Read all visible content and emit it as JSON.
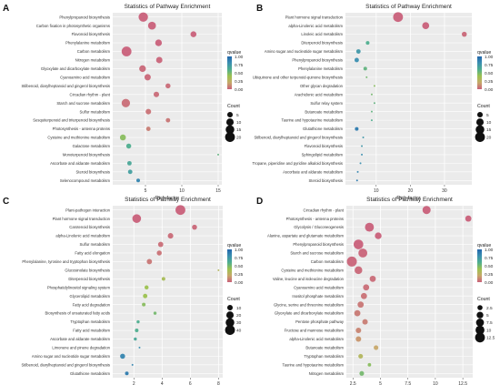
{
  "figure": {
    "scale_colors": [
      "#2166ac",
      "#3b8fb0",
      "#4fae8f",
      "#9cc24f",
      "#c7a86a",
      "#c9607a"
    ]
  },
  "chart_data": [
    {
      "type": "scatter",
      "panel_label": "A",
      "title": "Statistics of Pathway Enrichment",
      "xlabel": "Rich  factor",
      "ylabel": "",
      "xlim": [
        0.5,
        15.5
      ],
      "xticks": [
        5,
        10,
        15
      ],
      "legend": {
        "color_title": "qvalue",
        "color_ticks": [
          "1.00",
          "0.75",
          "0.50",
          "0.25",
          "0.00"
        ],
        "size_title": "Count",
        "size_ticks": [
          5,
          10,
          15,
          20
        ],
        "size_range": [
          5,
          20
        ]
      },
      "pathways": [
        {
          "name": "Phenylpropanoid biosynthesis",
          "rich_factor": 4.7,
          "count": 18,
          "qvalue": 0.0
        },
        {
          "name": "Carbon fixation in photosynthetic organisms",
          "rich_factor": 5.9,
          "count": 12,
          "qvalue": 0.0
        },
        {
          "name": "Flavonoid biosynthesis",
          "rich_factor": 11.6,
          "count": 6,
          "qvalue": 0.0
        },
        {
          "name": "Phenylalanine metabolism",
          "rich_factor": 6.8,
          "count": 8,
          "qvalue": 0.0
        },
        {
          "name": "Carbon metabolism",
          "rich_factor": 2.4,
          "count": 20,
          "qvalue": 0.0
        },
        {
          "name": "Nitrogen metabolism",
          "rich_factor": 6.9,
          "count": 7,
          "qvalue": 0.01
        },
        {
          "name": "Glyoxylate and dicarboxylate metabolism",
          "rich_factor": 4.6,
          "count": 8,
          "qvalue": 0.02
        },
        {
          "name": "Cyanoamino acid metabolism",
          "rich_factor": 5.3,
          "count": 7,
          "qvalue": 0.02
        },
        {
          "name": "Stilbenoid, diarylheptanoid and gingerol biosynthesis",
          "rich_factor": 8.1,
          "count": 4,
          "qvalue": 0.03
        },
        {
          "name": "Circadian rhythm - plant",
          "rich_factor": 6.5,
          "count": 5,
          "qvalue": 0.03
        },
        {
          "name": "Starch and sucrose metabolism",
          "rich_factor": 2.3,
          "count": 14,
          "qvalue": 0.04
        },
        {
          "name": "Sulfur metabolism",
          "rich_factor": 5.4,
          "count": 5,
          "qvalue": 0.05
        },
        {
          "name": "Sesquiterpenoid and triterpenoid biosynthesis",
          "rich_factor": 8.1,
          "count": 3,
          "qvalue": 0.06
        },
        {
          "name": "Photosynthesis - antenna proteins",
          "rich_factor": 5.4,
          "count": 3,
          "qvalue": 0.08
        },
        {
          "name": "Cysteine and methionine metabolism",
          "rich_factor": 1.9,
          "count": 6,
          "qvalue": 0.45
        },
        {
          "name": "Galactose metabolism",
          "rich_factor": 2.7,
          "count": 4,
          "qvalue": 0.6
        },
        {
          "name": "Monoterpenoid biosynthesis",
          "rich_factor": 15.0,
          "count": 1,
          "qvalue": 0.55
        },
        {
          "name": "Ascorbate and aldarate metabolism",
          "rich_factor": 2.8,
          "count": 3,
          "qvalue": 0.65
        },
        {
          "name": "Steroid biosynthesis",
          "rich_factor": 2.9,
          "count": 3,
          "qvalue": 0.7
        },
        {
          "name": "Selenocompound metabolism",
          "rich_factor": 4.0,
          "count": 2,
          "qvalue": 0.85
        }
      ]
    },
    {
      "type": "scatter",
      "panel_label": "B",
      "title": "Statistics of Pathway Enrichment",
      "xlabel": "Rich  factor",
      "ylabel": "",
      "xlim": [
        1,
        38
      ],
      "xticks": [
        10,
        20,
        30
      ],
      "legend": {
        "color_title": "qvalue",
        "color_ticks": [
          "1.00",
          "0.75",
          "0.50",
          "0.25",
          "0.00"
        ],
        "size_title": "Count",
        "size_ticks": [
          5,
          10,
          15,
          20
        ],
        "size_range": [
          5,
          20
        ]
      },
      "pathways": [
        {
          "name": "Plant hormone signal transduction",
          "rich_factor": 16.4,
          "count": 20,
          "qvalue": 0.0
        },
        {
          "name": "alpha-Linolenic acid metabolism",
          "rich_factor": 24.5,
          "count": 9,
          "qvalue": 0.0
        },
        {
          "name": "Linoleic acid metabolism",
          "rich_factor": 35.8,
          "count": 4,
          "qvalue": 0.02
        },
        {
          "name": "Diterpenoid biosynthesis",
          "rich_factor": 7.5,
          "count": 2,
          "qvalue": 0.6
        },
        {
          "name": "Amino sugar and nucleotide sugar metabolism",
          "rich_factor": 4.8,
          "count": 3,
          "qvalue": 0.75
        },
        {
          "name": "Phenylpropanoid biosynthesis",
          "rich_factor": 4.3,
          "count": 3,
          "qvalue": 0.8
        },
        {
          "name": "Phenylalanine metabolism",
          "rich_factor": 6.8,
          "count": 2,
          "qvalue": 0.55
        },
        {
          "name": "Ubiquinone and other terpenoid-quinone biosynthesis",
          "rich_factor": 7.2,
          "count": 1,
          "qvalue": 0.5
        },
        {
          "name": "Other glycan degradation",
          "rich_factor": 9.5,
          "count": 1,
          "qvalue": 0.45
        },
        {
          "name": "Arachidonic acid metabolism",
          "rich_factor": 8.7,
          "count": 1,
          "qvalue": 0.5
        },
        {
          "name": "Sulfur relay system",
          "rich_factor": 9.5,
          "count": 1,
          "qvalue": 0.55
        },
        {
          "name": "Butanoate metabolism",
          "rich_factor": 8.7,
          "count": 1,
          "qvalue": 0.55
        },
        {
          "name": "Taurine and hypotaurine metabolism",
          "rich_factor": 8.7,
          "count": 1,
          "qvalue": 0.6
        },
        {
          "name": "Glutathione metabolism",
          "rich_factor": 4.3,
          "count": 2,
          "qvalue": 0.9
        },
        {
          "name": "Stilbenoid, diarylheptanoid and gingerol biosynthesis",
          "rich_factor": 6.2,
          "count": 1,
          "qvalue": 0.75
        },
        {
          "name": "Flavonoid biosynthesis",
          "rich_factor": 5.8,
          "count": 1,
          "qvalue": 0.75
        },
        {
          "name": "Sphingolipid metabolism",
          "rich_factor": 5.8,
          "count": 1,
          "qvalue": 0.8
        },
        {
          "name": "Tropane, piperidine and pyridine alkaloid biosynthesis",
          "rich_factor": 5.4,
          "count": 1,
          "qvalue": 0.8
        },
        {
          "name": "Ascorbate and aldarate metabolism",
          "rich_factor": 4.6,
          "count": 1,
          "qvalue": 0.85
        },
        {
          "name": "Steroid biosynthesis",
          "rich_factor": 4.4,
          "count": 1,
          "qvalue": 0.9
        }
      ]
    },
    {
      "type": "scatter",
      "panel_label": "C",
      "title": "Statistics of Pathway Enrichment",
      "xlabel": "Rich  factor",
      "ylabel": "",
      "xlim": [
        0.5,
        8.3
      ],
      "xticks": [
        2,
        4,
        6,
        8
      ],
      "legend": {
        "color_title": "qvalue",
        "color_ticks": [
          "1.00",
          "0.75",
          "0.50",
          "0.25",
          "0.00"
        ],
        "size_title": "Count",
        "size_ticks": [
          10,
          20,
          30,
          40
        ],
        "size_range": [
          10,
          40
        ]
      },
      "pathways": [
        {
          "name": "Plant-pathogen interaction",
          "rich_factor": 5.3,
          "count": 40,
          "qvalue": 0.0
        },
        {
          "name": "Plant hormone signal transduction",
          "rich_factor": 2.2,
          "count": 30,
          "qvalue": 0.0
        },
        {
          "name": "Carotenoid biosynthesis",
          "rich_factor": 6.3,
          "count": 8,
          "qvalue": 0.02
        },
        {
          "name": "alpha-Linolenic acid metabolism",
          "rich_factor": 4.6,
          "count": 10,
          "qvalue": 0.03
        },
        {
          "name": "Sulfur metabolism",
          "rich_factor": 3.9,
          "count": 9,
          "qvalue": 0.04
        },
        {
          "name": "Fatty acid elongation",
          "rich_factor": 3.8,
          "count": 8,
          "qvalue": 0.05
        },
        {
          "name": "Phenylalanine, tyrosine and tryptophan biosynthesis",
          "rich_factor": 3.1,
          "count": 9,
          "qvalue": 0.06
        },
        {
          "name": "Glucosinolate biosynthesis",
          "rich_factor": 8.0,
          "count": 2,
          "qvalue": 0.3
        },
        {
          "name": "Diterpenoid biosynthesis",
          "rich_factor": 4.1,
          "count": 4,
          "qvalue": 0.35
        },
        {
          "name": "Phosphatidylinositol signaling system",
          "rich_factor": 2.9,
          "count": 5,
          "qvalue": 0.4
        },
        {
          "name": "Glycerolipid metabolism",
          "rich_factor": 2.8,
          "count": 6,
          "qvalue": 0.4
        },
        {
          "name": "Fatty acid degradation",
          "rich_factor": 2.7,
          "count": 4,
          "qvalue": 0.45
        },
        {
          "name": "Biosynthesis of unsaturated fatty acids",
          "rich_factor": 3.5,
          "count": 3,
          "qvalue": 0.5
        },
        {
          "name": "Tryptophan metabolism",
          "rich_factor": 2.3,
          "count": 3,
          "qvalue": 0.6
        },
        {
          "name": "Fatty acid metabolism",
          "rich_factor": 2.2,
          "count": 4,
          "qvalue": 0.6
        },
        {
          "name": "Ascorbate and aldarate metabolism",
          "rich_factor": 2.1,
          "count": 3,
          "qvalue": 0.65
        },
        {
          "name": "Limonene and pinene degradation",
          "rich_factor": 2.4,
          "count": 1,
          "qvalue": 0.8
        },
        {
          "name": "Amino sugar and nucleotide sugar metabolism",
          "rich_factor": 1.2,
          "count": 8,
          "qvalue": 0.85
        },
        {
          "name": "Stilbenoid, diarylheptanoid and gingerol biosynthesis",
          "rich_factor": 1.9,
          "count": 2,
          "qvalue": 0.85
        },
        {
          "name": "Glutathione metabolism",
          "rich_factor": 1.5,
          "count": 4,
          "qvalue": 0.9
        }
      ]
    },
    {
      "type": "scatter",
      "panel_label": "D",
      "title": "Statistics of Pathway Enrichment",
      "xlabel": "Rich  factor",
      "ylabel": "",
      "xlim": [
        1.9,
        13.4
      ],
      "xticks": [
        2.5,
        5.0,
        7.5,
        10.0,
        12.5
      ],
      "legend": {
        "color_title": "qvalue",
        "color_ticks": [
          "1.00",
          "0.75",
          "0.50",
          "0.25",
          "0.00"
        ],
        "size_title": "Count",
        "size_ticks": [
          2.5,
          5.0,
          7.5,
          10.0,
          12.5
        ],
        "size_range": [
          2.5,
          12.5
        ]
      },
      "pathways": [
        {
          "name": "Circadian rhythm - plant",
          "rich_factor": 9.2,
          "count": 8,
          "qvalue": 0.0
        },
        {
          "name": "Photosynthesis - antenna proteins",
          "rich_factor": 13.0,
          "count": 4,
          "qvalue": 0.0
        },
        {
          "name": "Glycolysis / Gluconeogenesis",
          "rich_factor": 4.0,
          "count": 10,
          "qvalue": 0.0
        },
        {
          "name": "Alanine, aspartate and glutamate metabolism",
          "rich_factor": 4.8,
          "count": 5,
          "qvalue": 0.0
        },
        {
          "name": "Phenylpropanoid biosynthesis",
          "rich_factor": 3.0,
          "count": 12,
          "qvalue": 0.0
        },
        {
          "name": "Starch and sucrose metabolism",
          "rich_factor": 3.4,
          "count": 10,
          "qvalue": 0.01
        },
        {
          "name": "Carbon metabolism",
          "rich_factor": 2.4,
          "count": 13,
          "qvalue": 0.01
        },
        {
          "name": "Cysteine and methionine metabolism",
          "rich_factor": 3.0,
          "count": 7,
          "qvalue": 0.02
        },
        {
          "name": "Valine, leucine and isoleucine degradation",
          "rich_factor": 4.3,
          "count": 4,
          "qvalue": 0.03
        },
        {
          "name": "Cyanoamino acid metabolism",
          "rich_factor": 3.7,
          "count": 4,
          "qvalue": 0.04
        },
        {
          "name": "Inositol phosphate metabolism",
          "rich_factor": 3.5,
          "count": 4,
          "qvalue": 0.05
        },
        {
          "name": "Glycine, serine and threonine metabolism",
          "rich_factor": 3.2,
          "count": 4,
          "qvalue": 0.06
        },
        {
          "name": "Glyoxylate and dicarboxylate metabolism",
          "rich_factor": 2.9,
          "count": 4,
          "qvalue": 0.07
        },
        {
          "name": "Pentose phosphate pathway",
          "rich_factor": 3.6,
          "count": 3,
          "qvalue": 0.08
        },
        {
          "name": "Fructose and mannose metabolism",
          "rich_factor": 3.0,
          "count": 3,
          "qvalue": 0.1
        },
        {
          "name": "alpha-Linolenic acid metabolism",
          "rich_factor": 3.0,
          "count": 3,
          "qvalue": 0.15
        },
        {
          "name": "Butanoate metabolism",
          "rich_factor": 4.6,
          "count": 2,
          "qvalue": 0.2
        },
        {
          "name": "Tryptophan metabolism",
          "rich_factor": 3.2,
          "count": 2,
          "qvalue": 0.3
        },
        {
          "name": "Taurine and hypotaurine metabolism",
          "rich_factor": 4.0,
          "count": 1,
          "qvalue": 0.45
        },
        {
          "name": "Nitrogen metabolism",
          "rich_factor": 3.3,
          "count": 2,
          "qvalue": 0.5
        }
      ]
    }
  ]
}
